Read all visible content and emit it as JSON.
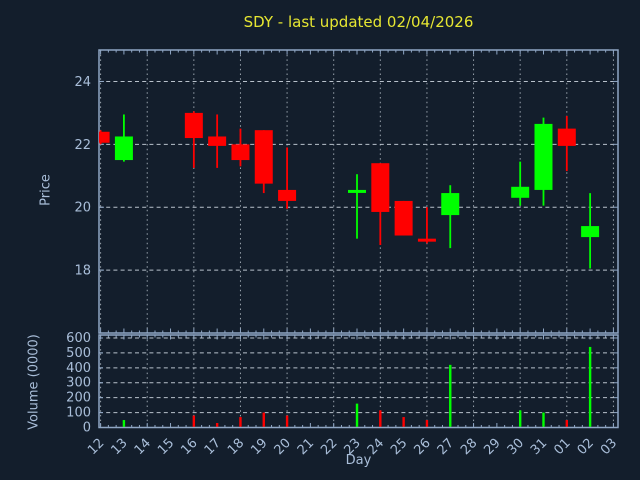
{
  "chart_data": {
    "type": "candlestick",
    "title": "SDY - last updated 02/04/2026",
    "xlabel": "Day",
    "x_categories": [
      "12",
      "13",
      "14",
      "15",
      "16",
      "17",
      "18",
      "19",
      "20",
      "21",
      "22",
      "23",
      "24",
      "25",
      "26",
      "27",
      "28",
      "29",
      "30",
      "31",
      "01",
      "02",
      "03"
    ],
    "price_axis": {
      "label": "Price",
      "range": [
        16,
        25
      ],
      "ticks": [
        18,
        20,
        22,
        24
      ]
    },
    "volume_axis": {
      "label": "Volume (0000)",
      "range": [
        0,
        620
      ],
      "ticks": [
        0,
        100,
        200,
        300,
        400,
        500,
        600
      ]
    },
    "grid": {
      "horizontal": "dashed",
      "vertical": "dotted-every-2-days"
    },
    "candles": [
      {
        "day": "12",
        "open": 22.4,
        "high": 22.45,
        "low": 22.0,
        "close": 22.05,
        "volume": 0
      },
      {
        "day": "13",
        "open": 21.5,
        "high": 22.95,
        "low": 21.45,
        "close": 22.25,
        "volume": 50
      },
      {
        "day": "16",
        "open": 23.0,
        "high": 23.05,
        "low": 21.25,
        "close": 22.2,
        "volume": 80
      },
      {
        "day": "17",
        "open": 22.25,
        "high": 22.95,
        "low": 21.25,
        "close": 21.95,
        "volume": 30
      },
      {
        "day": "18",
        "open": 22.0,
        "high": 22.5,
        "low": 21.3,
        "close": 21.5,
        "volume": 70
      },
      {
        "day": "19",
        "open": 22.45,
        "high": 22.45,
        "low": 20.45,
        "close": 20.75,
        "volume": 100
      },
      {
        "day": "20",
        "open": 20.55,
        "high": 21.9,
        "low": 19.95,
        "close": 20.2,
        "volume": 80
      },
      {
        "day": "23",
        "open": 20.5,
        "high": 21.05,
        "low": 19.0,
        "close": 20.55,
        "volume": 160
      },
      {
        "day": "24",
        "open": 21.4,
        "high": 21.4,
        "low": 18.8,
        "close": 19.85,
        "volume": 115
      },
      {
        "day": "25",
        "open": 20.2,
        "high": 20.2,
        "low": 19.1,
        "close": 19.1,
        "volume": 70
      },
      {
        "day": "26",
        "open": 19.0,
        "high": 20.0,
        "low": 18.85,
        "close": 18.95,
        "volume": 50
      },
      {
        "day": "27",
        "open": 19.75,
        "high": 20.7,
        "low": 18.7,
        "close": 20.45,
        "volume": 420
      },
      {
        "day": "30",
        "open": 20.3,
        "high": 21.45,
        "low": 20.05,
        "close": 20.65,
        "volume": 115
      },
      {
        "day": "31",
        "open": 20.55,
        "high": 22.85,
        "low": 20.05,
        "close": 22.65,
        "volume": 100
      },
      {
        "day": "01",
        "open": 22.5,
        "high": 22.9,
        "low": 21.15,
        "close": 21.95,
        "volume": 50
      },
      {
        "day": "02",
        "open": 19.05,
        "high": 20.45,
        "low": 18.05,
        "close": 19.4,
        "volume": 540
      }
    ],
    "colors": {
      "background": "#131E2C",
      "plot_border": "#8FA6C4",
      "text": "#A9BED9",
      "title": "#E6E632",
      "grid_horizontal": "#B9C2CC",
      "grid_vertical": "#99A3AD",
      "up": "#00FF00",
      "down": "#FF0000"
    }
  }
}
